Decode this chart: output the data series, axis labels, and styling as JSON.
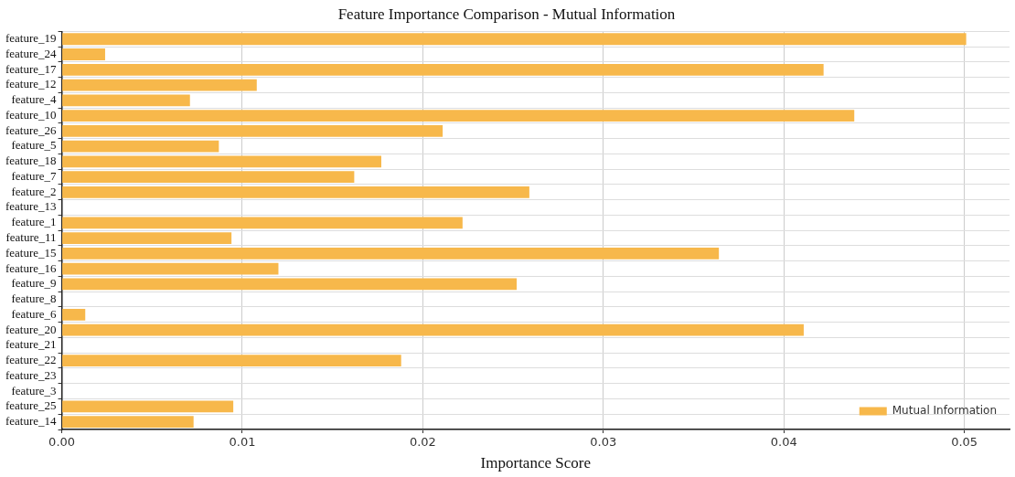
{
  "chart_data": {
    "type": "bar",
    "orientation": "horizontal",
    "title": "Feature Importance Comparison - Mutual Information",
    "xlabel": "Importance Score",
    "categories": [
      "feature_19",
      "feature_24",
      "feature_17",
      "feature_12",
      "feature_4",
      "feature_10",
      "feature_26",
      "feature_5",
      "feature_18",
      "feature_7",
      "feature_2",
      "feature_13",
      "feature_1",
      "feature_11",
      "feature_15",
      "feature_16",
      "feature_9",
      "feature_8",
      "feature_6",
      "feature_20",
      "feature_21",
      "feature_22",
      "feature_23",
      "feature_3",
      "feature_25",
      "feature_14"
    ],
    "series": [
      {
        "name": "Mutual Information",
        "color": "#f7b84b",
        "values": [
          0.0501,
          0.0024,
          0.0422,
          0.0108,
          0.0071,
          0.0439,
          0.0211,
          0.0087,
          0.0177,
          0.0162,
          0.0259,
          0,
          0.0222,
          0.0094,
          0.0364,
          0.012,
          0.0252,
          0,
          0.0013,
          0.0411,
          0,
          0.0188,
          0,
          0,
          0.0095,
          0.0073
        ]
      }
    ],
    "xlim": [
      0,
      0.0525
    ],
    "xticks": [
      {
        "value": 0,
        "label": "0.00"
      },
      {
        "value": 0.01,
        "label": "0.01"
      },
      {
        "value": 0.02,
        "label": "0.02"
      },
      {
        "value": 0.03,
        "label": "0.03"
      },
      {
        "value": 0.04,
        "label": "0.04"
      },
      {
        "value": 0.05,
        "label": "0.05"
      }
    ],
    "grid": true,
    "legend": "bottom right"
  }
}
